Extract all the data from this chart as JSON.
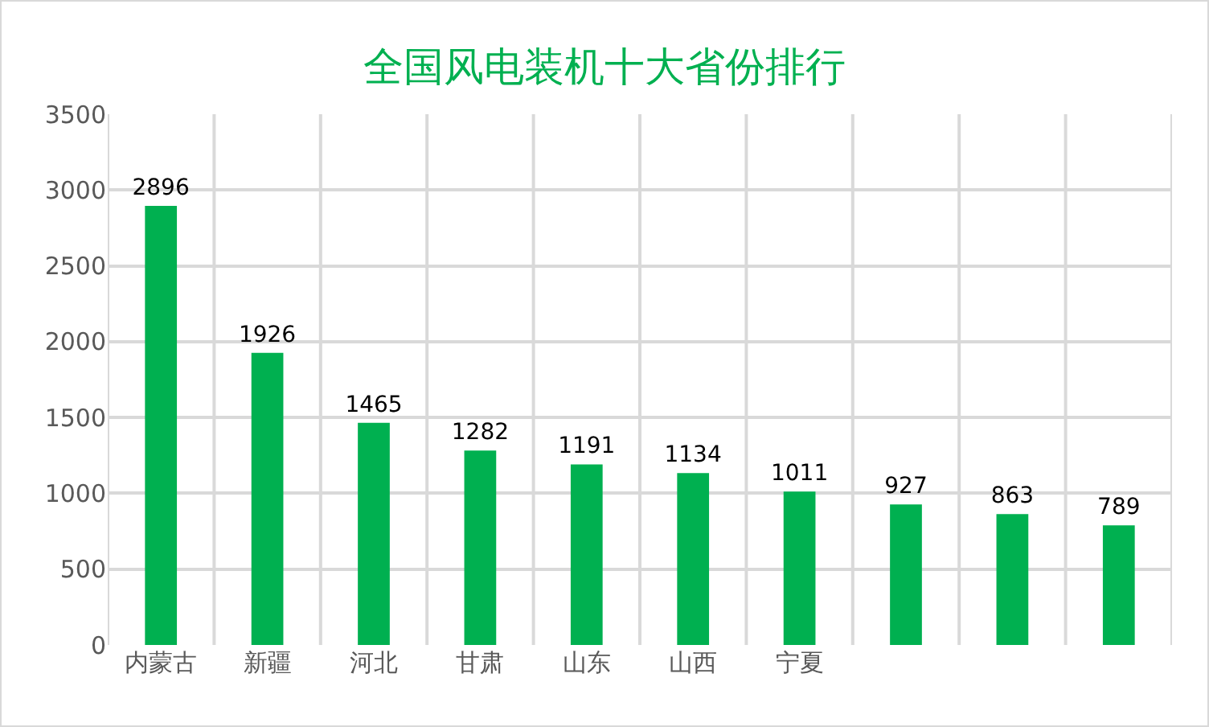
{
  "chart_data": {
    "type": "bar",
    "title": "全国风电装机十大省份排行",
    "categories": [
      "内蒙古",
      "新疆",
      "河北",
      "甘肃",
      "山东",
      "山西",
      "宁夏",
      null,
      null,
      null
    ],
    "values": [
      2896,
      1926,
      1465,
      1282,
      1191,
      1134,
      1011,
      927,
      863,
      789
    ],
    "color": "#00b050",
    "ylim": [
      0,
      3500
    ],
    "yticks": [
      0,
      500,
      1000,
      1500,
      2000,
      2500,
      3000,
      3500
    ],
    "grid": true,
    "data_labels": true
  }
}
